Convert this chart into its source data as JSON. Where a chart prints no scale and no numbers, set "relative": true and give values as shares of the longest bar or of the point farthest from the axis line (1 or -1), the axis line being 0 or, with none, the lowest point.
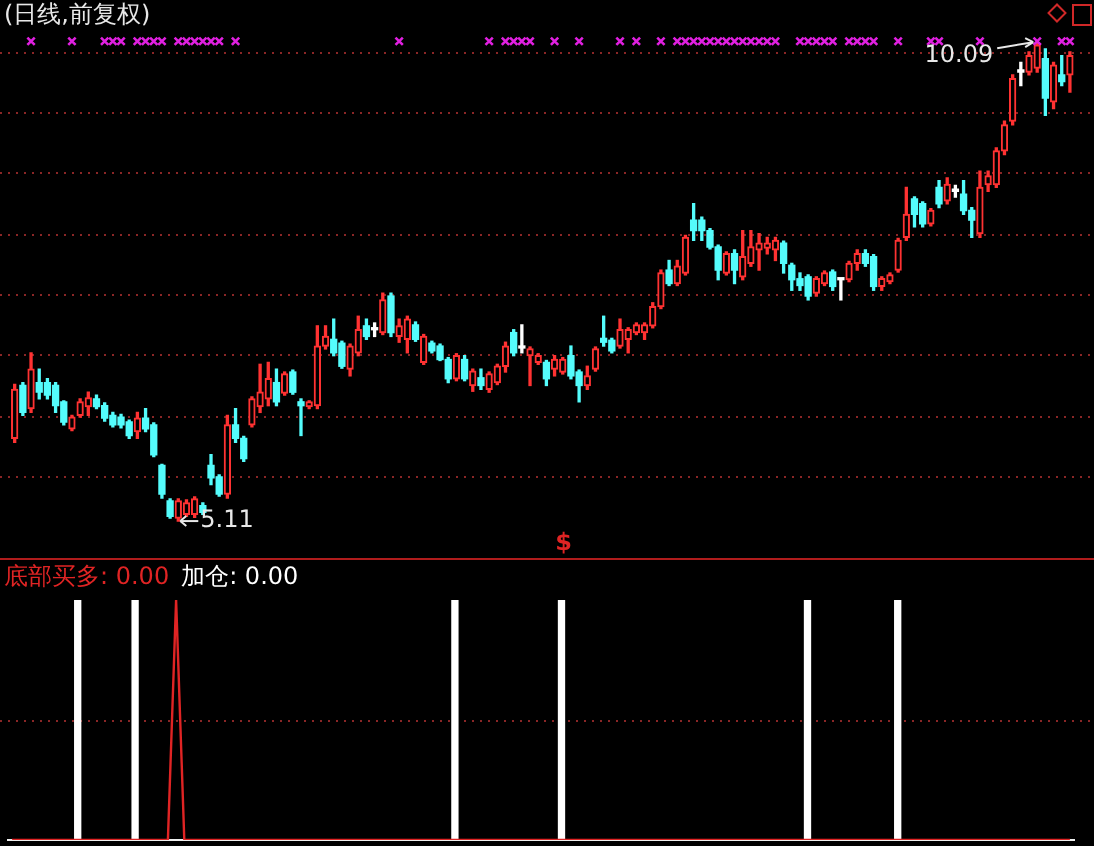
{
  "chart_data": [
    {
      "type": "candlestick",
      "title": "(日线,前复权)",
      "tick_labels": false,
      "categories": [
        null,
        null,
        null,
        null,
        null,
        null,
        null,
        null,
        null,
        null,
        null,
        null,
        null,
        null,
        null,
        null,
        null,
        null,
        null,
        null,
        null,
        null,
        null,
        null,
        null,
        null,
        null,
        null,
        null,
        null,
        null,
        null,
        null,
        null,
        null,
        null,
        null,
        null,
        null,
        null,
        null,
        null,
        null,
        null,
        null,
        null,
        null,
        null,
        null,
        null,
        null,
        null,
        null,
        null,
        null,
        null,
        null,
        null,
        null,
        null,
        null,
        null,
        null,
        null,
        null,
        null,
        null,
        null,
        null,
        null,
        null,
        null,
        null,
        null,
        null,
        null,
        null,
        null,
        null,
        null,
        null,
        null,
        null,
        null,
        null,
        null,
        null,
        null,
        null,
        null,
        null,
        null,
        null,
        null,
        null,
        null,
        null,
        null,
        null,
        null,
        null,
        null,
        null,
        null,
        null,
        null,
        null,
        null,
        null,
        null,
        null,
        null,
        null,
        null,
        null,
        null,
        null,
        null,
        null,
        null,
        null,
        null,
        null,
        null,
        null,
        null,
        null,
        null,
        null,
        null
      ],
      "ohlc": [
        [
          5.97,
          6.53,
          5.93,
          6.48
        ],
        [
          6.52,
          6.55,
          6.21,
          6.24
        ],
        [
          6.28,
          6.86,
          6.24,
          6.69
        ],
        [
          6.55,
          6.69,
          6.38,
          6.45
        ],
        [
          6.55,
          6.59,
          6.38,
          6.42
        ],
        [
          6.52,
          6.55,
          6.24,
          6.31
        ],
        [
          6.35,
          6.36,
          6.11,
          6.14
        ],
        [
          6.07,
          6.21,
          6.05,
          6.19
        ],
        [
          6.21,
          6.38,
          6.19,
          6.35
        ],
        [
          6.3,
          6.45,
          6.21,
          6.39
        ],
        [
          6.38,
          6.42,
          6.28,
          6.3
        ],
        [
          6.31,
          6.34,
          6.15,
          6.18
        ],
        [
          6.21,
          6.24,
          6.09,
          6.11
        ],
        [
          6.19,
          6.22,
          6.08,
          6.11
        ],
        [
          6.14,
          6.16,
          5.97,
          6.0
        ],
        [
          6.04,
          6.24,
          5.97,
          6.18
        ],
        [
          6.18,
          6.28,
          6.04,
          6.07
        ],
        [
          6.11,
          6.13,
          5.78,
          5.8
        ],
        [
          5.69,
          5.7,
          5.35,
          5.39
        ],
        [
          5.32,
          5.34,
          5.14,
          5.16
        ],
        [
          5.14,
          5.34,
          5.11,
          5.32
        ],
        [
          5.18,
          5.33,
          5.16,
          5.3
        ],
        [
          5.18,
          5.36,
          5.15,
          5.34
        ],
        [
          5.27,
          5.3,
          5.18,
          5.2
        ],
        [
          5.69,
          5.8,
          5.49,
          5.56
        ],
        [
          5.57,
          5.59,
          5.37,
          5.39
        ],
        [
          5.39,
          6.21,
          5.35,
          6.11
        ],
        [
          6.11,
          6.28,
          5.93,
          5.97
        ],
        [
          5.97,
          5.99,
          5.73,
          5.76
        ],
        [
          6.11,
          6.4,
          6.09,
          6.38
        ],
        [
          6.3,
          6.74,
          6.24,
          6.45
        ],
        [
          6.38,
          6.76,
          6.31,
          6.59
        ],
        [
          6.55,
          6.69,
          6.31,
          6.35
        ],
        [
          6.44,
          6.66,
          6.42,
          6.64
        ],
        [
          6.66,
          6.68,
          6.43,
          6.45
        ],
        [
          6.35,
          6.38,
          6.0,
          6.31
        ],
        [
          6.3,
          6.36,
          6.28,
          6.35
        ],
        [
          6.31,
          7.14,
          6.28,
          6.93
        ],
        [
          6.93,
          7.14,
          6.9,
          7.03
        ],
        [
          7.0,
          7.21,
          6.83,
          6.86
        ],
        [
          6.96,
          6.98,
          6.7,
          6.72
        ],
        [
          6.69,
          6.95,
          6.62,
          6.93
        ],
        [
          6.86,
          7.24,
          6.83,
          7.1
        ],
        [
          7.14,
          7.21,
          7.0,
          7.03
        ],
        [
          7.1,
          7.17,
          7.03,
          7.1
        ],
        [
          7.07,
          7.48,
          7.05,
          7.41
        ],
        [
          7.45,
          7.48,
          7.03,
          7.07
        ],
        [
          7.03,
          7.21,
          6.97,
          7.14
        ],
        [
          7.0,
          7.24,
          6.86,
          7.21
        ],
        [
          7.15,
          7.18,
          6.98,
          7.0
        ],
        [
          6.76,
          7.05,
          6.74,
          7.03
        ],
        [
          6.96,
          6.98,
          6.86,
          6.88
        ],
        [
          6.93,
          6.95,
          6.78,
          6.79
        ],
        [
          6.79,
          6.81,
          6.55,
          6.59
        ],
        [
          6.59,
          6.85,
          6.57,
          6.83
        ],
        [
          6.79,
          6.83,
          6.57,
          6.59
        ],
        [
          6.52,
          6.69,
          6.46,
          6.67
        ],
        [
          6.6,
          6.69,
          6.48,
          6.52
        ],
        [
          6.48,
          6.66,
          6.45,
          6.64
        ],
        [
          6.55,
          6.74,
          6.53,
          6.72
        ],
        [
          6.72,
          6.97,
          6.66,
          6.93
        ],
        [
          7.07,
          7.1,
          6.83,
          6.86
        ],
        [
          6.91,
          7.15,
          6.86,
          6.91
        ],
        [
          6.83,
          6.92,
          6.52,
          6.9
        ],
        [
          6.76,
          6.85,
          6.74,
          6.83
        ],
        [
          6.76,
          6.78,
          6.52,
          6.59
        ],
        [
          6.69,
          6.83,
          6.62,
          6.79
        ],
        [
          6.66,
          6.81,
          6.64,
          6.79
        ],
        [
          6.83,
          6.93,
          6.59,
          6.62
        ],
        [
          6.66,
          6.68,
          6.35,
          6.52
        ],
        [
          6.52,
          6.72,
          6.48,
          6.62
        ],
        [
          6.69,
          6.92,
          6.67,
          6.9
        ],
        [
          7.01,
          7.24,
          6.93,
          6.97
        ],
        [
          6.99,
          7.01,
          6.86,
          6.88
        ],
        [
          6.93,
          7.21,
          6.91,
          7.1
        ],
        [
          7.0,
          7.12,
          6.86,
          7.1
        ],
        [
          7.07,
          7.17,
          7.05,
          7.15
        ],
        [
          7.07,
          7.17,
          7.0,
          7.15
        ],
        [
          7.14,
          7.38,
          7.12,
          7.34
        ],
        [
          7.34,
          7.72,
          7.32,
          7.69
        ],
        [
          7.72,
          7.82,
          7.56,
          7.58
        ],
        [
          7.58,
          7.82,
          7.56,
          7.76
        ],
        [
          7.69,
          8.08,
          7.67,
          8.06
        ],
        [
          8.24,
          8.41,
          8.03,
          8.13
        ],
        [
          8.24,
          8.27,
          8.03,
          8.13
        ],
        [
          8.13,
          8.15,
          7.94,
          7.96
        ],
        [
          7.96,
          7.98,
          7.62,
          7.72
        ],
        [
          7.69,
          7.91,
          7.67,
          7.89
        ],
        [
          7.89,
          7.93,
          7.58,
          7.72
        ],
        [
          7.65,
          8.13,
          7.62,
          7.86
        ],
        [
          7.79,
          8.13,
          7.76,
          7.96
        ],
        [
          7.93,
          8.1,
          7.72,
          8.0
        ],
        [
          7.95,
          8.06,
          7.89,
          8.0
        ],
        [
          7.93,
          8.06,
          7.82,
          8.03
        ],
        [
          8.0,
          8.02,
          7.69,
          7.79
        ],
        [
          7.77,
          7.79,
          7.51,
          7.62
        ],
        [
          7.63,
          7.69,
          7.51,
          7.56
        ],
        [
          7.65,
          7.67,
          7.41,
          7.45
        ],
        [
          7.48,
          7.65,
          7.45,
          7.63
        ],
        [
          7.58,
          7.71,
          7.56,
          7.69
        ],
        [
          7.7,
          7.72,
          7.51,
          7.55
        ],
        [
          7.62,
          7.63,
          7.41,
          7.62
        ],
        [
          7.62,
          7.81,
          7.6,
          7.79
        ],
        [
          7.79,
          7.93,
          7.72,
          7.89
        ],
        [
          7.89,
          7.93,
          7.76,
          7.79
        ],
        [
          7.86,
          7.88,
          7.51,
          7.55
        ],
        [
          7.55,
          7.65,
          7.51,
          7.63
        ],
        [
          7.6,
          7.69,
          7.58,
          7.67
        ],
        [
          7.72,
          8.05,
          7.7,
          8.03
        ],
        [
          8.06,
          8.58,
          8.03,
          8.3
        ],
        [
          8.46,
          8.48,
          8.17,
          8.3
        ],
        [
          8.41,
          8.43,
          8.17,
          8.2
        ],
        [
          8.2,
          8.36,
          8.18,
          8.34
        ],
        [
          8.58,
          8.65,
          8.37,
          8.41
        ],
        [
          8.44,
          8.68,
          8.41,
          8.61
        ],
        [
          8.54,
          8.6,
          8.48,
          8.54
        ],
        [
          8.51,
          8.65,
          8.3,
          8.34
        ],
        [
          8.34,
          8.37,
          8.06,
          8.24
        ],
        [
          8.1,
          8.75,
          8.06,
          8.58
        ],
        [
          8.61,
          8.75,
          8.54,
          8.7
        ],
        [
          8.61,
          8.99,
          8.58,
          8.96
        ],
        [
          8.96,
          9.27,
          8.92,
          9.23
        ],
        [
          9.27,
          9.75,
          9.23,
          9.71
        ],
        [
          9.78,
          9.88,
          9.64,
          9.78
        ],
        [
          9.78,
          9.99,
          9.75,
          9.95
        ],
        [
          9.82,
          10.09,
          9.78,
          10.06
        ],
        [
          9.92,
          10.02,
          9.33,
          9.51
        ],
        [
          9.47,
          9.88,
          9.4,
          9.85
        ],
        [
          9.75,
          9.95,
          9.64,
          9.68
        ],
        [
          9.75,
          9.99,
          9.57,
          9.95
        ]
      ],
      "colors": [
        "#ff3232",
        "#54fcfc",
        "#ff3232",
        "#54fcfc",
        "#54fcfc",
        "#54fcfc",
        "#54fcfc",
        "#ff3232",
        "#ff3232",
        "#ff3232",
        "#54fcfc",
        "#54fcfc",
        "#54fcfc",
        "#54fcfc",
        "#54fcfc",
        "#ff3232",
        "#54fcfc",
        "#54fcfc",
        "#54fcfc",
        "#54fcfc",
        "#ff3232",
        "#ff3232",
        "#ff3232",
        "#54fcfc",
        "#54fcfc",
        "#54fcfc",
        "#ff3232",
        "#54fcfc",
        "#54fcfc",
        "#ff3232",
        "#ff3232",
        "#ff3232",
        "#54fcfc",
        "#ff3232",
        "#54fcfc",
        "#54fcfc",
        "#ff3232",
        "#ff3232",
        "#ff3232",
        "#54fcfc",
        "#54fcfc",
        "#ff3232",
        "#ff3232",
        "#54fcfc",
        "#ffffff",
        "#ff3232",
        "#54fcfc",
        "#ff3232",
        "#ff3232",
        "#54fcfc",
        "#ff3232",
        "#54fcfc",
        "#54fcfc",
        "#54fcfc",
        "#ff3232",
        "#54fcfc",
        "#ff3232",
        "#54fcfc",
        "#ff3232",
        "#ff3232",
        "#ff3232",
        "#54fcfc",
        "#ffffff",
        "#ff3232",
        "#ff3232",
        "#54fcfc",
        "#ff3232",
        "#ff3232",
        "#54fcfc",
        "#54fcfc",
        "#ff3232",
        "#ff3232",
        "#54fcfc",
        "#54fcfc",
        "#ff3232",
        "#ff3232",
        "#ff3232",
        "#ff3232",
        "#ff3232",
        "#ff3232",
        "#54fcfc",
        "#ff3232",
        "#ff3232",
        "#54fcfc",
        "#54fcfc",
        "#54fcfc",
        "#54fcfc",
        "#ff3232",
        "#54fcfc",
        "#ff3232",
        "#ff3232",
        "#ff3232",
        "#ff3232",
        "#ff3232",
        "#54fcfc",
        "#54fcfc",
        "#54fcfc",
        "#54fcfc",
        "#ff3232",
        "#ff3232",
        "#54fcfc",
        "#ffffff",
        "#ff3232",
        "#ff3232",
        "#54fcfc",
        "#54fcfc",
        "#ff3232",
        "#ff3232",
        "#ff3232",
        "#ff3232",
        "#54fcfc",
        "#54fcfc",
        "#ff3232",
        "#54fcfc",
        "#ff3232",
        "#ffffff",
        "#54fcfc",
        "#54fcfc",
        "#ff3232",
        "#ff3232",
        "#ff3232",
        "#ff3232",
        "#ff3232",
        "#ffffff",
        "#ff3232",
        "#ff3232",
        "#54fcfc",
        "#ff3232",
        "#54fcfc",
        "#ff3232"
      ],
      "series": [
        {
          "type": "scatter",
          "marker": "cross",
          "color": "#e020e0",
          "values": [
            null,
            null,
            10.1,
            null,
            null,
            null,
            null,
            10.1,
            null,
            null,
            null,
            10.1,
            10.1,
            10.1,
            null,
            10.1,
            10.1,
            10.1,
            10.1,
            null,
            10.1,
            10.1,
            10.1,
            10.1,
            10.1,
            10.1,
            null,
            10.1,
            null,
            null,
            null,
            null,
            null,
            null,
            null,
            null,
            null,
            null,
            null,
            null,
            null,
            null,
            null,
            null,
            null,
            null,
            null,
            10.1,
            null,
            null,
            null,
            null,
            null,
            null,
            null,
            null,
            null,
            null,
            10.1,
            null,
            10.1,
            10.1,
            10.1,
            10.1,
            null,
            null,
            10.1,
            null,
            null,
            10.1,
            null,
            null,
            null,
            null,
            10.1,
            null,
            10.1,
            null,
            null,
            10.1,
            null,
            10.1,
            10.1,
            10.1,
            10.1,
            10.1,
            10.1,
            10.1,
            10.1,
            10.1,
            10.1,
            10.1,
            10.1,
            10.1,
            null,
            null,
            10.1,
            10.1,
            10.1,
            10.1,
            10.1,
            null,
            10.1,
            10.1,
            10.1,
            10.1,
            null,
            null,
            10.1,
            null,
            null,
            null,
            10.1,
            10.1,
            null,
            null,
            null,
            null,
            10.1,
            null,
            null,
            null,
            null,
            null,
            null,
            10.1,
            null,
            null,
            10.1,
            10.1
          ]
        }
      ],
      "ref_lines": [
        {
          "axis": "y",
          "value": 9.99,
          "color": "#8a2626",
          "line_style": "dotted"
        },
        {
          "axis": "y",
          "value": 9.36,
          "color": "#8a2626",
          "line_style": "dotted"
        },
        {
          "axis": "y",
          "value": 8.73,
          "color": "#8a2626",
          "line_style": "dotted"
        },
        {
          "axis": "y",
          "value": 8.1,
          "color": "#8a2626",
          "line_style": "dotted"
        },
        {
          "axis": "y",
          "value": 7.47,
          "color": "#8a2626",
          "line_style": "dotted"
        },
        {
          "axis": "y",
          "value": 6.84,
          "color": "#8a2626",
          "line_style": "dotted"
        },
        {
          "axis": "y",
          "value": 6.21,
          "color": "#8a2626",
          "line_style": "dotted"
        },
        {
          "axis": "y",
          "value": 5.58,
          "color": "#8a2626",
          "line_style": "dotted"
        }
      ],
      "annotations": [
        "10.09",
        "5.11",
        "$"
      ]
    },
    {
      "type": "line",
      "relative": true,
      "tick_labels": false,
      "categories": [
        null,
        null,
        null,
        null,
        null,
        null,
        null,
        null,
        null,
        null,
        null,
        null,
        null,
        null,
        null,
        null,
        null,
        null,
        null,
        null,
        null,
        null,
        null,
        null,
        null,
        null,
        null,
        null,
        null,
        null,
        null,
        null,
        null,
        null,
        null,
        null,
        null,
        null,
        null,
        null,
        null,
        null,
        null,
        null,
        null,
        null,
        null,
        null,
        null,
        null,
        null,
        null,
        null,
        null,
        null,
        null,
        null,
        null,
        null,
        null,
        null,
        null,
        null,
        null,
        null,
        null,
        null,
        null,
        null,
        null,
        null,
        null,
        null,
        null,
        null,
        null,
        null,
        null,
        null,
        null,
        null,
        null,
        null,
        null,
        null,
        null,
        null,
        null,
        null,
        null,
        null,
        null,
        null,
        null,
        null,
        null,
        null,
        null,
        null,
        null,
        null,
        null,
        null,
        null,
        null,
        null,
        null,
        null,
        null,
        null,
        null,
        null,
        null,
        null,
        null,
        null,
        null,
        null,
        null,
        null,
        null,
        null,
        null,
        null,
        null,
        null,
        null,
        null,
        null,
        null
      ],
      "series": [
        {
          "name": "底部买多: 0.00",
          "color": "#e02424",
          "values": [
            0,
            0,
            0,
            0,
            0,
            0,
            0,
            0,
            0,
            0,
            0,
            0,
            0,
            0,
            0,
            0,
            0,
            0,
            0,
            0,
            1,
            0,
            0,
            0,
            0,
            0,
            0,
            0,
            0,
            0,
            0,
            0,
            0,
            0,
            0,
            0,
            0,
            0,
            0,
            0,
            0,
            0,
            0,
            0,
            0,
            0,
            0,
            0,
            0,
            0,
            0,
            0,
            0,
            0,
            0,
            0,
            0,
            0,
            0,
            0,
            0,
            0,
            0,
            0,
            0,
            0,
            0,
            0,
            0,
            0,
            0,
            0,
            0,
            0,
            0,
            0,
            0,
            0,
            0,
            0,
            0,
            0,
            0,
            0,
            0,
            0,
            0,
            0,
            0,
            0,
            0,
            0,
            0,
            0,
            0,
            0,
            0,
            0,
            0,
            0,
            0,
            0,
            0,
            0,
            0,
            0,
            0,
            0,
            0,
            0,
            0,
            0,
            0,
            0,
            0,
            0,
            0,
            0,
            0,
            0,
            0,
            0,
            0,
            0,
            0,
            0,
            0,
            0,
            0,
            0
          ]
        },
        {
          "name": "加仓: 0.00",
          "type": "bar",
          "color": "#ffffff",
          "values": [
            null,
            null,
            null,
            null,
            null,
            null,
            null,
            null,
            1,
            null,
            null,
            null,
            null,
            null,
            null,
            1,
            null,
            null,
            null,
            null,
            null,
            null,
            null,
            null,
            null,
            null,
            null,
            null,
            null,
            null,
            null,
            null,
            null,
            null,
            null,
            null,
            null,
            null,
            null,
            null,
            null,
            null,
            null,
            null,
            null,
            null,
            null,
            null,
            null,
            null,
            null,
            null,
            null,
            null,
            1,
            null,
            null,
            null,
            null,
            null,
            null,
            null,
            null,
            null,
            null,
            null,
            null,
            1,
            null,
            null,
            null,
            null,
            null,
            null,
            null,
            null,
            null,
            null,
            null,
            null,
            null,
            null,
            null,
            null,
            null,
            null,
            null,
            null,
            null,
            null,
            null,
            null,
            null,
            null,
            null,
            null,
            null,
            1,
            null,
            null,
            null,
            null,
            null,
            null,
            null,
            null,
            null,
            null,
            1,
            null,
            null,
            null,
            null,
            null,
            null,
            null,
            null,
            null,
            null,
            null,
            null,
            null,
            null,
            null,
            null,
            null,
            null,
            null,
            null,
            null
          ]
        }
      ],
      "ref_lines": [
        {
          "axis": "y",
          "value": 0.5,
          "color": "#8a2626",
          "line_style": "dotted"
        }
      ]
    }
  ]
}
